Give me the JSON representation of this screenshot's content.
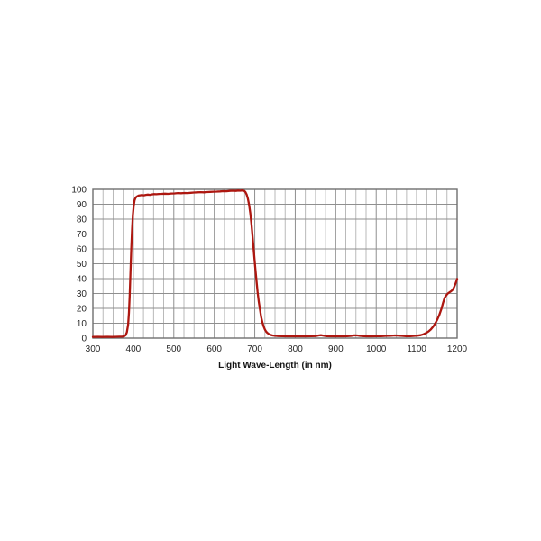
{
  "page": {
    "background": "#ffffff"
  },
  "style": {
    "grid_minor": "#b2b2b2",
    "grid_major": "#8f8f8f",
    "plot_border": "#6f6f6f",
    "tick_text": "#262626",
    "title_text": "#151515"
  },
  "chart_data": {
    "type": "line",
    "title": "",
    "xlabel": "Light Wave-Length (in nm)",
    "ylabel": "",
    "x_range": [
      300,
      1200
    ],
    "y_range": [
      0,
      100
    ],
    "x_major_grid": 100,
    "x_minor_grid": 25,
    "y_grid": 10,
    "grid": true,
    "legend": "none",
    "x_tick_labels": [
      "300",
      "400",
      "500",
      "600",
      "700",
      "800",
      "900",
      "1000",
      "1100",
      "1200"
    ],
    "y_tick_labels": [
      "0",
      "10",
      "20",
      "30",
      "40",
      "50",
      "60",
      "70",
      "80",
      "90",
      "100"
    ],
    "series": [
      {
        "name": "transmission-percent",
        "color": "#ad1710",
        "points": [
          [
            300,
            0.8
          ],
          [
            312,
            0.9
          ],
          [
            324,
            0.8
          ],
          [
            336,
            0.9
          ],
          [
            348,
            0.8
          ],
          [
            358,
            0.9
          ],
          [
            366,
            1.0
          ],
          [
            372,
            1.0
          ],
          [
            377,
            1.2
          ],
          [
            381,
            2.0
          ],
          [
            384,
            4.0
          ],
          [
            387,
            9
          ],
          [
            389,
            17
          ],
          [
            391,
            28
          ],
          [
            393,
            44
          ],
          [
            395,
            60
          ],
          [
            397,
            73
          ],
          [
            399,
            83
          ],
          [
            401,
            89
          ],
          [
            403,
            92.5
          ],
          [
            405,
            94
          ],
          [
            407,
            94.8
          ],
          [
            410,
            95.4
          ],
          [
            413,
            95.8
          ],
          [
            417,
            96.0
          ],
          [
            421,
            96.2
          ],
          [
            426,
            96.0
          ],
          [
            431,
            96.3
          ],
          [
            436,
            96.5
          ],
          [
            441,
            96.3
          ],
          [
            446,
            96.6
          ],
          [
            451,
            96.8
          ],
          [
            457,
            96.7
          ],
          [
            463,
            96.9
          ],
          [
            470,
            97.0
          ],
          [
            478,
            97.1
          ],
          [
            486,
            97.0
          ],
          [
            494,
            97.2
          ],
          [
            502,
            97.3
          ],
          [
            510,
            97.5
          ],
          [
            518,
            97.4
          ],
          [
            526,
            97.6
          ],
          [
            534,
            97.5
          ],
          [
            542,
            97.7
          ],
          [
            550,
            97.9
          ],
          [
            558,
            98.0
          ],
          [
            566,
            98.1
          ],
          [
            574,
            98.0
          ],
          [
            582,
            98.2
          ],
          [
            590,
            98.3
          ],
          [
            598,
            98.4
          ],
          [
            606,
            98.5
          ],
          [
            614,
            98.6
          ],
          [
            622,
            98.8
          ],
          [
            630,
            98.7
          ],
          [
            638,
            99.0
          ],
          [
            646,
            99.1
          ],
          [
            653,
            99.0
          ],
          [
            659,
            99.2
          ],
          [
            664,
            99.1
          ],
          [
            669,
            99.3
          ],
          [
            674,
            99.0
          ],
          [
            677,
            98.2
          ],
          [
            680,
            96.5
          ],
          [
            683,
            93.8
          ],
          [
            686,
            89.5
          ],
          [
            689,
            84
          ],
          [
            692,
            76
          ],
          [
            695,
            67
          ],
          [
            698,
            57
          ],
          [
            701,
            48
          ],
          [
            704,
            39
          ],
          [
            707,
            31
          ],
          [
            710,
            24.5
          ],
          [
            713,
            19
          ],
          [
            716,
            14
          ],
          [
            719,
            10.5
          ],
          [
            722,
            7.8
          ],
          [
            725,
            5.8
          ],
          [
            728,
            4.4
          ],
          [
            731,
            3.5
          ],
          [
            735,
            2.7
          ],
          [
            739,
            2.2
          ],
          [
            744,
            1.8
          ],
          [
            750,
            1.6
          ],
          [
            758,
            1.4
          ],
          [
            768,
            1.3
          ],
          [
            780,
            1.2
          ],
          [
            792,
            1.2
          ],
          [
            804,
            1.2
          ],
          [
            816,
            1.3
          ],
          [
            828,
            1.2
          ],
          [
            840,
            1.3
          ],
          [
            850,
            1.4
          ],
          [
            858,
            1.8
          ],
          [
            864,
            2.0
          ],
          [
            870,
            1.7
          ],
          [
            878,
            1.3
          ],
          [
            888,
            1.2
          ],
          [
            898,
            1.2
          ],
          [
            908,
            1.3
          ],
          [
            918,
            1.2
          ],
          [
            928,
            1.3
          ],
          [
            938,
            1.5
          ],
          [
            946,
            1.9
          ],
          [
            953,
            1.8
          ],
          [
            960,
            1.5
          ],
          [
            970,
            1.3
          ],
          [
            980,
            1.2
          ],
          [
            990,
            1.2
          ],
          [
            1000,
            1.3
          ],
          [
            1012,
            1.3
          ],
          [
            1024,
            1.5
          ],
          [
            1036,
            1.6
          ],
          [
            1046,
            1.8
          ],
          [
            1055,
            1.7
          ],
          [
            1064,
            1.5
          ],
          [
            1074,
            1.3
          ],
          [
            1084,
            1.3
          ],
          [
            1094,
            1.5
          ],
          [
            1102,
            1.7
          ],
          [
            1110,
            2.0
          ],
          [
            1117,
            2.6
          ],
          [
            1123,
            3.4
          ],
          [
            1129,
            4.4
          ],
          [
            1135,
            5.8
          ],
          [
            1141,
            7.8
          ],
          [
            1146,
            10
          ],
          [
            1151,
            12.5
          ],
          [
            1156,
            15.5
          ],
          [
            1161,
            19.5
          ],
          [
            1165,
            23.5
          ],
          [
            1169,
            27
          ],
          [
            1173,
            28.8
          ],
          [
            1177,
            30
          ],
          [
            1181,
            30.8
          ],
          [
            1185,
            31.5
          ],
          [
            1189,
            32.5
          ],
          [
            1192,
            34
          ],
          [
            1195,
            36
          ],
          [
            1198,
            38.2
          ],
          [
            1200,
            39.8
          ]
        ]
      }
    ]
  }
}
